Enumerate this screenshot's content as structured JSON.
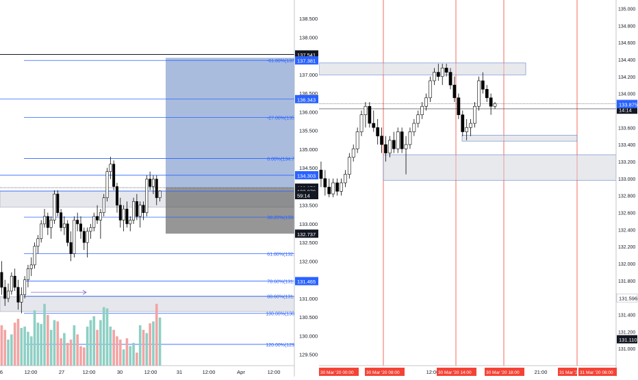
{
  "colors": {
    "up": "#ffffff",
    "down": "#000000",
    "wick": "#000000",
    "vol_up": "#8ecfc4",
    "vol_down": "#f2a4a4",
    "fib": "#2962ff",
    "fib_text": "#2962ff",
    "zone_fill": "#d1d4dc",
    "zone_stroke": "#5b7fc9",
    "target_fill": "#6f8fc8",
    "stop_fill": "#5d5d5d",
    "session_line": "#f44336",
    "axis_text": "#131722",
    "grid": "#e0e3eb"
  },
  "chart_data": [
    {
      "type": "candlestick",
      "panel": "left",
      "y_axis": {
        "ylim": [
          129.2,
          139.0
        ],
        "ticks": [
          "138.500",
          "138.000",
          "137.500",
          "137.000",
          "136.500",
          "136.000",
          "135.500",
          "135.000",
          "134.500",
          "134.000",
          "133.500",
          "133.000",
          "132.500",
          "132.000",
          "131.500",
          "131.000",
          "130.500",
          "130.000",
          "129.500"
        ]
      },
      "x_axis": {
        "tick_labels": [
          "6",
          "12:00",
          "27",
          "12:00",
          "30",
          "12:00",
          "31",
          "12:00",
          "Apr",
          "12:00"
        ]
      },
      "price_labels": [
        {
          "text": "137.541",
          "value": 137.541,
          "style": "dark"
        },
        {
          "text": "137.381",
          "value": 137.381,
          "style": "blue"
        },
        {
          "text": "136.343",
          "value": 136.343,
          "style": "blue"
        },
        {
          "text": "134.303",
          "value": 134.303,
          "style": "blue"
        },
        {
          "text": "133.970",
          "value": 133.97,
          "style": "dark"
        },
        {
          "text": "133.879",
          "value": 133.879,
          "style": "dark"
        },
        {
          "text": "59:14",
          "value": 133.77,
          "style": "dark"
        },
        {
          "text": "132.737",
          "value": 132.737,
          "style": "dark"
        },
        {
          "text": "131.465",
          "value": 131.465,
          "style": "blue"
        }
      ],
      "fib_levels": [
        {
          "label": "-61.80%(137",
          "value": 137.381
        },
        {
          "label": "-27.00%(135",
          "value": 135.85
        },
        {
          "label": "0.00%(134.7",
          "value": 134.75
        },
        {
          "label": "38.20%(133.",
          "value": 133.18
        },
        {
          "label": "61.80%(132.",
          "value": 132.2
        },
        {
          "label": "78.60%(131.",
          "value": 131.465
        },
        {
          "label": "88.60%(131.",
          "value": 131.06
        },
        {
          "label": "100.00%(130",
          "value": 130.6
        },
        {
          "label": "120.00%(129",
          "value": 129.77
        }
      ],
      "plain_lines": [
        136.343,
        134.303,
        133.879
      ],
      "black_lines": [
        137.541
      ],
      "zones": [
        {
          "from": 133.45,
          "to": 133.88
        },
        {
          "from": 130.65,
          "to": 131.05
        }
      ],
      "position": {
        "entry": 133.97,
        "target": 137.45,
        "stop": 132.737
      },
      "candles": [
        [
          131.7,
          132.0,
          131.1,
          131.3
        ],
        [
          131.3,
          131.5,
          130.8,
          131.0
        ],
        [
          131.0,
          131.4,
          130.9,
          131.2
        ],
        [
          131.2,
          131.7,
          131.1,
          131.6
        ],
        [
          131.6,
          131.8,
          131.2,
          131.3
        ],
        [
          131.3,
          131.5,
          130.7,
          130.9
        ],
        [
          130.9,
          131.3,
          130.6,
          131.1
        ],
        [
          131.1,
          131.6,
          131.0,
          131.5
        ],
        [
          131.5,
          131.9,
          131.3,
          131.8
        ],
        [
          131.8,
          132.1,
          131.6,
          131.9
        ],
        [
          131.9,
          132.5,
          131.8,
          132.4
        ],
        [
          132.4,
          132.7,
          132.2,
          132.6
        ],
        [
          132.6,
          133.1,
          132.5,
          133.0
        ],
        [
          133.0,
          133.4,
          132.9,
          133.2
        ],
        [
          133.2,
          133.3,
          132.7,
          132.9
        ],
        [
          132.9,
          133.2,
          132.6,
          133.1
        ],
        [
          133.1,
          133.9,
          133.0,
          133.8
        ],
        [
          133.8,
          133.9,
          133.2,
          133.3
        ],
        [
          133.3,
          133.4,
          132.8,
          132.9
        ],
        [
          132.9,
          133.2,
          132.7,
          133.0
        ],
        [
          133.0,
          133.1,
          132.4,
          132.5
        ],
        [
          132.5,
          132.8,
          132.0,
          132.2
        ],
        [
          132.2,
          133.2,
          132.1,
          133.1
        ],
        [
          133.1,
          133.3,
          132.8,
          133.0
        ],
        [
          133.0,
          133.2,
          132.6,
          132.8
        ],
        [
          132.8,
          132.9,
          132.3,
          132.5
        ],
        [
          132.5,
          132.9,
          132.1,
          132.8
        ],
        [
          132.8,
          133.0,
          132.6,
          132.9
        ],
        [
          132.9,
          133.3,
          132.8,
          133.2
        ],
        [
          133.2,
          133.5,
          133.0,
          133.1
        ],
        [
          133.1,
          133.4,
          132.6,
          133.3
        ],
        [
          133.3,
          133.8,
          133.2,
          133.7
        ],
        [
          133.7,
          134.5,
          133.6,
          134.4
        ],
        [
          134.4,
          134.8,
          134.2,
          134.6
        ],
        [
          134.6,
          134.7,
          133.9,
          134.0
        ],
        [
          134.0,
          134.1,
          133.3,
          133.5
        ],
        [
          133.5,
          133.7,
          132.9,
          133.1
        ],
        [
          133.1,
          133.5,
          132.8,
          133.4
        ],
        [
          133.4,
          133.6,
          132.9,
          133.0
        ],
        [
          133.0,
          133.2,
          132.8,
          133.1
        ],
        [
          133.1,
          133.7,
          133.0,
          133.6
        ],
        [
          133.6,
          133.8,
          133.1,
          133.2
        ],
        [
          133.2,
          133.6,
          132.9,
          133.5
        ],
        [
          133.5,
          133.6,
          133.1,
          133.3
        ],
        [
          133.3,
          134.3,
          133.2,
          134.2
        ],
        [
          134.2,
          134.4,
          133.9,
          134.0
        ],
        [
          134.0,
          134.3,
          133.8,
          134.2
        ],
        [
          134.2,
          134.3,
          133.5,
          133.7
        ],
        [
          133.7,
          133.9,
          133.6,
          133.88
        ]
      ],
      "volume": [
        0.62,
        0.55,
        0.4,
        0.48,
        0.66,
        0.72,
        0.58,
        0.6,
        0.52,
        0.45,
        0.85,
        0.66,
        0.64,
        0.95,
        0.78,
        0.55,
        0.7,
        0.68,
        0.42,
        0.5,
        0.35,
        0.4,
        0.62,
        0.48,
        0.3,
        0.28,
        0.6,
        0.7,
        0.76,
        0.55,
        0.7,
        0.9,
        0.88,
        0.6,
        0.55,
        0.45,
        0.4,
        0.25,
        0.42,
        0.3,
        0.35,
        0.2,
        0.62,
        0.55,
        0.5,
        0.65,
        0.68,
        0.95,
        0.74
      ]
    },
    {
      "type": "candlestick",
      "panel": "right",
      "y_axis": {
        "ylim": [
          130.8,
          135.1
        ],
        "ticks": [
          "135.000",
          "134.800",
          "134.600",
          "134.400",
          "134.200",
          "134.000",
          "133.800",
          "133.600",
          "133.400",
          "133.200",
          "133.000",
          "132.800",
          "132.600",
          "132.400",
          "132.200",
          "132.000",
          "131.800",
          "131.600",
          "131.400",
          "131.200",
          "131.000"
        ]
      },
      "x_axis": {
        "tick_labels": [
          "12:00",
          "21:00"
        ]
      },
      "session_labels": [
        "30 Mar '20",
        "00:00",
        "30 Mar '20",
        "08:00",
        "30 Mar '20",
        "14:00",
        "30 Mar '20",
        "18:00",
        "31 Mar '20",
        "31 Mar '20",
        "08:00"
      ],
      "price_labels": [
        {
          "text": "133.879",
          "value": 133.879,
          "style": "light"
        },
        {
          "text": "14:14",
          "value": 133.81,
          "style": "dark"
        },
        {
          "text": "133.875",
          "value": 133.875,
          "style": "blue"
        },
        {
          "text": "131.596",
          "value": 131.596,
          "style": "light"
        },
        {
          "text": "131.110",
          "value": 131.11,
          "style": "dark"
        }
      ],
      "dotted_line": 133.879,
      "solid_lines": [
        133.82
      ],
      "zones": [
        {
          "from": 134.22,
          "to": 134.36
        },
        {
          "from": 133.44,
          "to": 133.51
        },
        {
          "from": 132.98,
          "to": 133.28
        }
      ],
      "candles": [
        [
          133.1,
          133.2,
          132.9,
          133.0
        ],
        [
          133.0,
          133.1,
          132.8,
          132.9
        ],
        [
          132.9,
          133.0,
          132.78,
          132.82
        ],
        [
          132.82,
          133.0,
          132.78,
          132.95
        ],
        [
          132.95,
          133.0,
          132.8,
          132.85
        ],
        [
          132.85,
          133.0,
          132.8,
          132.95
        ],
        [
          132.95,
          133.1,
          132.9,
          133.05
        ],
        [
          133.05,
          133.3,
          133.0,
          133.25
        ],
        [
          133.25,
          133.4,
          133.2,
          133.35
        ],
        [
          133.35,
          133.6,
          133.3,
          133.55
        ],
        [
          133.55,
          133.8,
          133.5,
          133.75
        ],
        [
          133.75,
          133.9,
          133.6,
          133.85
        ],
        [
          133.85,
          133.9,
          133.6,
          133.65
        ],
        [
          133.65,
          133.8,
          133.55,
          133.6
        ],
        [
          133.6,
          133.7,
          133.4,
          133.5
        ],
        [
          133.5,
          133.6,
          133.3,
          133.4
        ],
        [
          133.4,
          133.5,
          133.2,
          133.3
        ],
        [
          133.3,
          133.5,
          133.25,
          133.45
        ],
        [
          133.45,
          133.55,
          133.3,
          133.35
        ],
        [
          133.35,
          133.6,
          133.3,
          133.55
        ],
        [
          133.55,
          133.6,
          133.3,
          133.35
        ],
        [
          133.35,
          133.5,
          133.05,
          133.4
        ],
        [
          133.4,
          133.6,
          133.35,
          133.55
        ],
        [
          133.55,
          133.7,
          133.5,
          133.65
        ],
        [
          133.65,
          133.8,
          133.6,
          133.75
        ],
        [
          133.75,
          133.9,
          133.7,
          133.85
        ],
        [
          133.85,
          134.0,
          133.8,
          133.95
        ],
        [
          133.95,
          134.2,
          133.9,
          134.15
        ],
        [
          134.15,
          134.3,
          134.1,
          134.25
        ],
        [
          134.25,
          134.35,
          134.15,
          134.2
        ],
        [
          134.2,
          134.35,
          134.1,
          134.3
        ],
        [
          134.3,
          134.35,
          134.2,
          134.25
        ],
        [
          134.25,
          134.3,
          134.05,
          134.1
        ],
        [
          134.1,
          134.2,
          133.9,
          133.95
        ],
        [
          133.95,
          134.0,
          133.7,
          133.75
        ],
        [
          133.75,
          133.8,
          133.5,
          133.55
        ],
        [
          133.55,
          133.7,
          133.45,
          133.6
        ],
        [
          133.6,
          133.7,
          133.5,
          133.65
        ],
        [
          133.65,
          133.9,
          133.6,
          133.85
        ],
        [
          133.85,
          134.2,
          133.8,
          134.15
        ],
        [
          134.15,
          134.25,
          134.0,
          134.05
        ],
        [
          134.05,
          134.1,
          133.9,
          133.95
        ],
        [
          133.95,
          134.0,
          133.75,
          133.85
        ],
        [
          133.85,
          133.9,
          133.82,
          133.88
        ]
      ]
    }
  ]
}
